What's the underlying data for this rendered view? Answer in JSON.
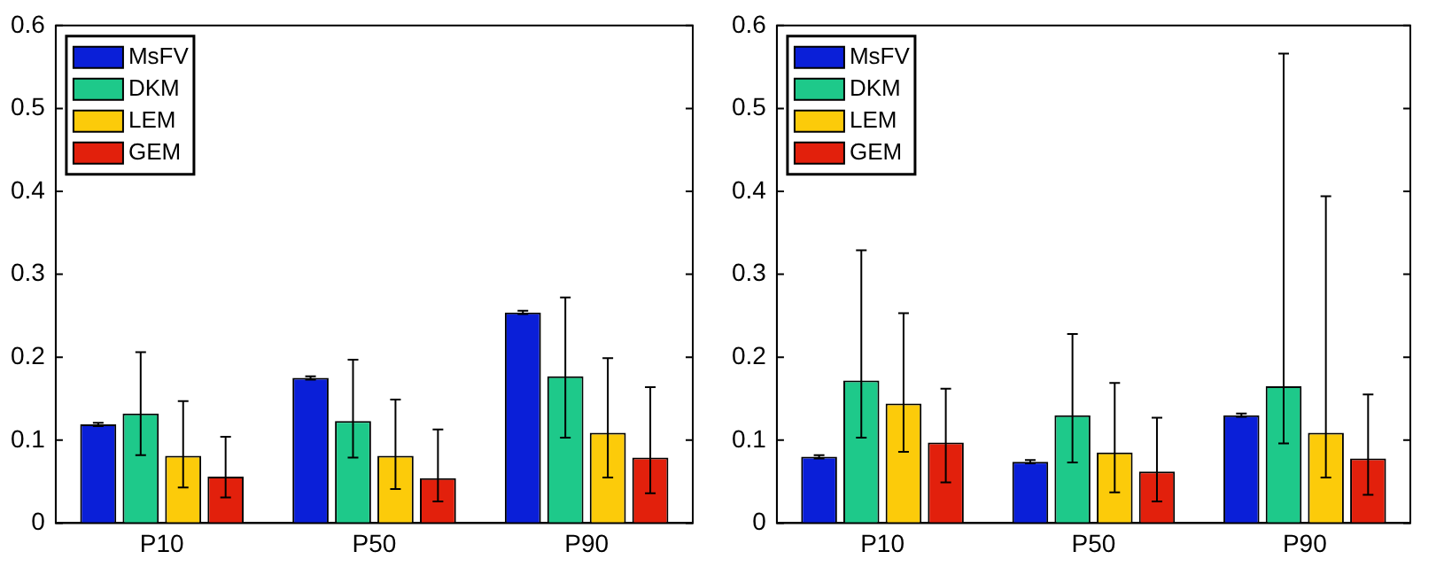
{
  "chart_data": [
    {
      "type": "bar",
      "categories": [
        "P10",
        "P50",
        "P90"
      ],
      "ylim": [
        0,
        0.6
      ],
      "yticks": [
        0,
        0.1,
        0.2,
        0.3,
        0.4,
        0.5,
        0.6
      ],
      "grid": false,
      "legend": "top left",
      "series": [
        {
          "name": "MsFV",
          "color": "#0a1fd8",
          "values": [
            0.119,
            0.175,
            0.254
          ],
          "errors": [
            0.002,
            0.002,
            0.002
          ]
        },
        {
          "name": "DKM",
          "color": "#1ec98a",
          "values": [
            0.132,
            0.123,
            0.177
          ],
          "errors": [
            [
              0.082,
              0.206
            ],
            [
              0.079,
              0.197
            ],
            [
              0.103,
              0.272
            ]
          ]
        },
        {
          "name": "LEM",
          "color": "#fccb0a",
          "values": [
            0.081,
            0.081,
            0.109
          ],
          "errors": [
            [
              0.043,
              0.147
            ],
            [
              0.041,
              0.149
            ],
            [
              0.055,
              0.199
            ]
          ]
        },
        {
          "name": "GEM",
          "color": "#e2200c",
          "values": [
            0.056,
            0.054,
            0.079
          ],
          "errors": [
            [
              0.031,
              0.104
            ],
            [
              0.026,
              0.113
            ],
            [
              0.036,
              0.164
            ]
          ]
        }
      ]
    },
    {
      "type": "bar",
      "categories": [
        "P10",
        "P50",
        "P90"
      ],
      "ylim": [
        0,
        0.6
      ],
      "yticks": [
        0,
        0.1,
        0.2,
        0.3,
        0.4,
        0.5,
        0.6
      ],
      "grid": false,
      "legend": "top left",
      "series": [
        {
          "name": "MsFV",
          "color": "#0a1fd8",
          "values": [
            0.08,
            0.074,
            0.13
          ],
          "errors": [
            0.002,
            0.002,
            0.002
          ]
        },
        {
          "name": "DKM",
          "color": "#1ec98a",
          "values": [
            0.172,
            0.13,
            0.165
          ],
          "errors": [
            [
              0.103,
              0.329
            ],
            [
              0.073,
              0.228
            ],
            [
              0.096,
              0.566
            ]
          ]
        },
        {
          "name": "LEM",
          "color": "#fccb0a",
          "values": [
            0.144,
            0.085,
            0.109
          ],
          "errors": [
            [
              0.086,
              0.253
            ],
            [
              0.037,
              0.169
            ],
            [
              0.055,
              0.394
            ]
          ]
        },
        {
          "name": "GEM",
          "color": "#e2200c",
          "values": [
            0.097,
            0.062,
            0.078
          ],
          "errors": [
            [
              0.049,
              0.162
            ],
            [
              0.026,
              0.127
            ],
            [
              0.034,
              0.155
            ]
          ]
        }
      ]
    }
  ]
}
